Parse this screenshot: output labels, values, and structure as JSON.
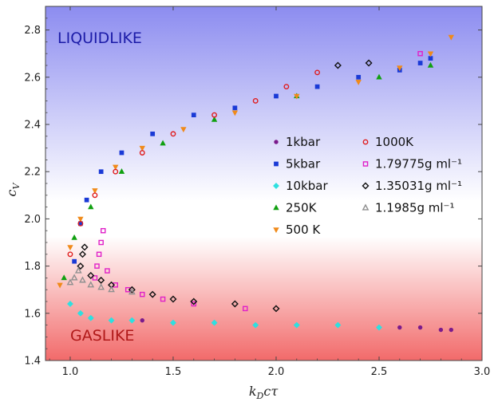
{
  "chart_data": {
    "type": "scatter",
    "xlabel_parts": [
      "k",
      "D",
      "cτ"
    ],
    "ylabel_parts": [
      "c",
      "V"
    ],
    "xlim": [
      0.88,
      3.0
    ],
    "ylim": [
      1.4,
      2.9
    ],
    "xticks": [
      "1.0",
      "1.5",
      "2.0",
      "2.5",
      "3.0"
    ],
    "xtick_values": [
      1.0,
      1.5,
      2.0,
      2.5,
      3.0
    ],
    "yticks": [
      "1.4",
      "1.6",
      "1.8",
      "2.0",
      "2.2",
      "2.4",
      "2.6",
      "2.8"
    ],
    "ytick_values": [
      1.4,
      1.6,
      1.8,
      2.0,
      2.2,
      2.4,
      2.6,
      2.8
    ],
    "regions": [
      {
        "label": "LIQUIDLIKE",
        "color": "#1c1ca8",
        "background": "#8c8cf0"
      },
      {
        "label": "GASLIKE",
        "color": "#b01818",
        "background": "#f26a6a"
      }
    ],
    "legend_placement": "center-right",
    "series": [
      {
        "name": "1kbar",
        "color": "#7a1a8c",
        "marker": "circle",
        "x": [
          1.05,
          1.1,
          1.2,
          1.35,
          1.5,
          1.7,
          1.9,
          2.1,
          2.3,
          2.5,
          2.6,
          2.7,
          2.8,
          2.85
        ],
        "y": [
          1.6,
          1.58,
          1.57,
          1.57,
          1.56,
          1.56,
          1.55,
          1.55,
          1.55,
          1.54,
          1.54,
          1.54,
          1.53,
          1.53
        ]
      },
      {
        "name": "5kbar",
        "color": "#1a3ad6",
        "marker": "square",
        "x": [
          1.02,
          1.05,
          1.08,
          1.15,
          1.25,
          1.4,
          1.6,
          1.8,
          2.0,
          2.2,
          2.4,
          2.6,
          2.7,
          2.75
        ],
        "y": [
          1.82,
          1.98,
          2.08,
          2.2,
          2.28,
          2.36,
          2.44,
          2.47,
          2.52,
          2.56,
          2.6,
          2.63,
          2.66,
          2.68
        ]
      },
      {
        "name": "10kbar",
        "color": "#2ee0e0",
        "marker": "diamond",
        "x": [
          1.0,
          1.05,
          1.1,
          1.2,
          1.3,
          1.5,
          1.7,
          1.9,
          2.1,
          2.3,
          2.5
        ],
        "y": [
          1.64,
          1.6,
          1.58,
          1.57,
          1.57,
          1.56,
          1.56,
          1.55,
          1.55,
          1.55,
          1.54
        ]
      },
      {
        "name": "250K",
        "color": "#10a010",
        "marker": "triangle",
        "x": [
          0.97,
          1.02,
          1.1,
          1.25,
          1.45,
          1.7,
          2.1,
          2.5,
          2.75
        ],
        "y": [
          1.75,
          1.92,
          2.05,
          2.2,
          2.32,
          2.42,
          2.52,
          2.6,
          2.65
        ]
      },
      {
        "name": "500 K",
        "color": "#f08a1a",
        "marker": "inverted-triangle",
        "x": [
          0.95,
          1.0,
          1.05,
          1.12,
          1.22,
          1.35,
          1.55,
          1.8,
          2.1,
          2.4,
          2.6,
          2.75,
          2.85
        ],
        "y": [
          1.72,
          1.88,
          2.0,
          2.12,
          2.22,
          2.3,
          2.38,
          2.45,
          2.52,
          2.58,
          2.64,
          2.7,
          2.77
        ]
      },
      {
        "name": "1000K",
        "color": "#e01a1a",
        "marker": "open-circle",
        "x": [
          1.0,
          1.05,
          1.12,
          1.22,
          1.35,
          1.5,
          1.7,
          1.9,
          2.05,
          2.2
        ],
        "y": [
          1.85,
          1.98,
          2.1,
          2.2,
          2.28,
          2.36,
          2.44,
          2.5,
          2.56,
          2.62
        ]
      },
      {
        "name": "1.79775g ml⁻¹",
        "color": "#e020c8",
        "marker": "open-square",
        "x": [
          1.12,
          1.13,
          1.14,
          1.15,
          1.16,
          1.18,
          1.22,
          1.28,
          1.35,
          1.45,
          1.6,
          1.85,
          2.7
        ],
        "y": [
          1.75,
          1.8,
          1.85,
          1.9,
          1.95,
          1.78,
          1.72,
          1.7,
          1.68,
          1.66,
          1.64,
          1.62,
          2.7
        ]
      },
      {
        "name": "1.35031g ml⁻¹",
        "color": "#111111",
        "marker": "open-diamond",
        "x": [
          1.05,
          1.06,
          1.07,
          1.1,
          1.15,
          1.2,
          1.3,
          1.4,
          1.5,
          1.6,
          1.8,
          2.0,
          2.3,
          2.45
        ],
        "y": [
          1.8,
          1.85,
          1.88,
          1.76,
          1.74,
          1.72,
          1.7,
          1.68,
          1.66,
          1.65,
          1.64,
          1.62,
          2.65,
          2.66
        ]
      },
      {
        "name": "1.1985g ml⁻¹",
        "color": "#909090",
        "marker": "open-triangle",
        "x": [
          1.0,
          1.02,
          1.04,
          1.06,
          1.1,
          1.15,
          1.2,
          1.3
        ],
        "y": [
          1.73,
          1.75,
          1.78,
          1.74,
          1.72,
          1.71,
          1.7,
          1.69
        ]
      }
    ]
  }
}
